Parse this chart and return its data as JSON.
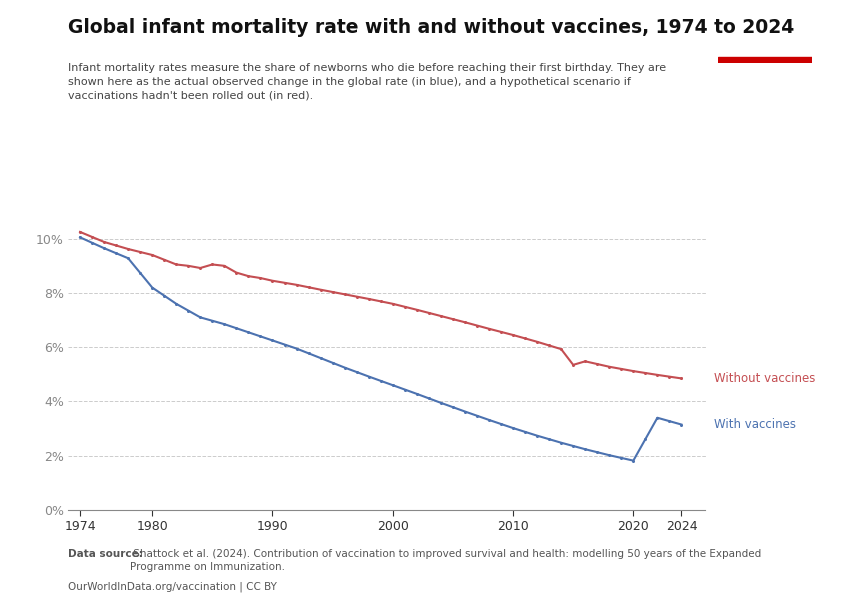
{
  "title": "Global infant mortality rate with and without vaccines, 1974 to 2024",
  "subtitle": "Infant mortality rates measure the share of newborns who die before reaching their first birthday. They are\nshown here as the actual observed change in the global rate (in blue), and a hypothetical scenario if\nvaccinations hadn't been rolled out (in red).",
  "with_vaccines_color": "#4C72B0",
  "without_vaccines_color": "#C44E52",
  "background_color": "#ffffff",
  "grid_color": "#cccccc",
  "owid_box_color": "#1a3a5c",
  "owid_box_red": "#cc0000",
  "source_bold": "Data source:",
  "source_rest": " Shattock et al. (2024). Contribution of vaccination to improved survival and health: modelling 50 years of the Expanded\nProgramme on Immunization.",
  "url_text": "OurWorldInData.org/vaccination | CC BY",
  "xlabel_ticks": [
    1974,
    1980,
    1990,
    2000,
    2010,
    2020,
    2024
  ],
  "yticks": [
    0.0,
    0.02,
    0.04,
    0.06,
    0.08,
    0.1
  ],
  "ylim": [
    0.0,
    0.115
  ],
  "xlim": [
    1973,
    2026
  ],
  "wv_key_x": [
    1974,
    1976,
    1978,
    1980,
    1982,
    1984,
    1986,
    1988,
    1990,
    1992,
    1994,
    1996,
    1998,
    2000,
    2002,
    2004,
    2006,
    2008,
    2010,
    2012,
    2014,
    2016,
    2018,
    2020,
    2022,
    2024
  ],
  "wv_key_y": [
    0.1005,
    0.0965,
    0.0928,
    0.082,
    0.076,
    0.071,
    0.0685,
    0.0655,
    0.0625,
    0.0595,
    0.056,
    0.0525,
    0.0492,
    0.046,
    0.0428,
    0.0395,
    0.0363,
    0.0332,
    0.0302,
    0.0274,
    0.0248,
    0.0224,
    0.0202,
    0.0182,
    0.034,
    0.0315
  ],
  "wo_key_x": [
    1974,
    1976,
    1978,
    1980,
    1982,
    1983,
    1984,
    1985,
    1986,
    1987,
    1988,
    1989,
    1990,
    1992,
    1994,
    1996,
    1998,
    2000,
    2002,
    2004,
    2006,
    2008,
    2010,
    2012,
    2014,
    2015,
    2016,
    2018,
    2020,
    2022,
    2024
  ],
  "wo_key_y": [
    0.1025,
    0.0988,
    0.0962,
    0.094,
    0.0905,
    0.09,
    0.0892,
    0.0905,
    0.09,
    0.0875,
    0.0862,
    0.0855,
    0.0845,
    0.083,
    0.0812,
    0.0795,
    0.0778,
    0.076,
    0.0738,
    0.0715,
    0.0692,
    0.0668,
    0.0645,
    0.062,
    0.0593,
    0.0535,
    0.0548,
    0.0528,
    0.0512,
    0.0498,
    0.0485
  ]
}
